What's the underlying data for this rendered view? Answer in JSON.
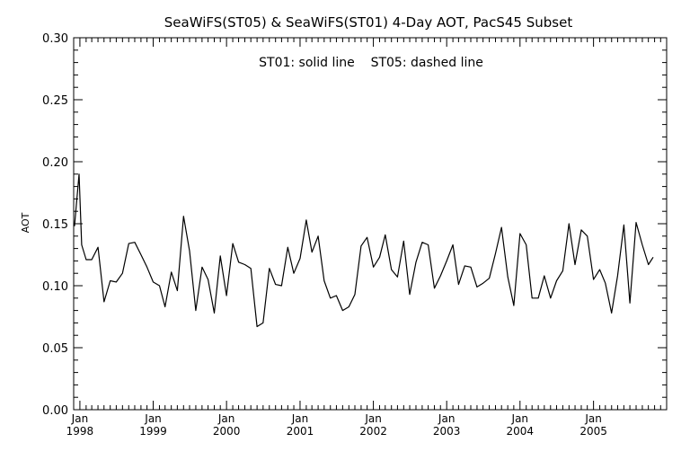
{
  "chart_data": {
    "type": "line",
    "title": "SeaWiFS(ST05) & SeaWiFS(ST01) 4-Day AOT, PacS45 Subset",
    "annotation": "ST01: solid line    ST05: dashed line",
    "xlabel": "",
    "ylabel": "AOT",
    "xlim": [
      "1997-12-01",
      "2005-12-31"
    ],
    "ylim": [
      0,
      0.3
    ],
    "y_ticks": [
      "0.00",
      "0.05",
      "0.10",
      "0.15",
      "0.20",
      "0.25",
      "0.30"
    ],
    "x_ticks": [
      {
        "month": "Jan",
        "year": "1998",
        "date": "1998-01-01"
      },
      {
        "month": "Jan",
        "year": "1999",
        "date": "1999-01-01"
      },
      {
        "month": "Jan",
        "year": "2000",
        "date": "2000-01-01"
      },
      {
        "month": "Jan",
        "year": "2001",
        "date": "2001-01-01"
      },
      {
        "month": "Jan",
        "year": "2002",
        "date": "2002-01-01"
      },
      {
        "month": "Jan",
        "year": "2003",
        "date": "2003-01-01"
      },
      {
        "month": "Jan",
        "year": "2004",
        "date": "2004-01-01"
      },
      {
        "month": "Jan",
        "year": "2005",
        "date": "2005-01-01"
      }
    ],
    "grid": false,
    "series": [
      {
        "name": "ST01",
        "style": "solid",
        "color": "#000000",
        "points": [
          [
            "1997-12-05",
            0.148
          ],
          [
            "1997-12-28",
            0.19
          ],
          [
            "1998-01-10",
            0.133
          ],
          [
            "1998-02-01",
            0.121
          ],
          [
            "1998-03-01",
            0.121
          ],
          [
            "1998-04-01",
            0.131
          ],
          [
            "1998-05-01",
            0.087
          ],
          [
            "1998-06-01",
            0.104
          ],
          [
            "1998-07-01",
            0.103
          ],
          [
            "1998-08-01",
            0.11
          ],
          [
            "1998-09-01",
            0.134
          ],
          [
            "1998-10-01",
            0.135
          ],
          [
            "1998-11-01",
            0.125
          ],
          [
            "1998-12-01",
            0.115
          ],
          [
            "1999-01-01",
            0.103
          ],
          [
            "1999-02-01",
            0.1
          ],
          [
            "1999-03-01",
            0.083
          ],
          [
            "1999-04-01",
            0.111
          ],
          [
            "1999-05-01",
            0.096
          ],
          [
            "1999-06-01",
            0.156
          ],
          [
            "1999-07-01",
            0.128
          ],
          [
            "1999-08-01",
            0.08
          ],
          [
            "1999-09-01",
            0.115
          ],
          [
            "1999-10-01",
            0.105
          ],
          [
            "1999-11-01",
            0.078
          ],
          [
            "1999-12-01",
            0.124
          ],
          [
            "2000-01-01",
            0.092
          ],
          [
            "2000-02-01",
            0.134
          ],
          [
            "2000-03-01",
            0.119
          ],
          [
            "2000-04-01",
            0.117
          ],
          [
            "2000-05-01",
            0.114
          ],
          [
            "2000-06-01",
            0.067
          ],
          [
            "2000-07-01",
            0.07
          ],
          [
            "2000-08-01",
            0.114
          ],
          [
            "2000-09-01",
            0.101
          ],
          [
            "2000-10-01",
            0.1
          ],
          [
            "2000-11-01",
            0.131
          ],
          [
            "2000-12-01",
            0.11
          ],
          [
            "2001-01-01",
            0.122
          ],
          [
            "2001-02-01",
            0.153
          ],
          [
            "2001-03-01",
            0.127
          ],
          [
            "2001-04-01",
            0.14
          ],
          [
            "2001-05-01",
            0.104
          ],
          [
            "2001-06-01",
            0.09
          ],
          [
            "2001-07-01",
            0.092
          ],
          [
            "2001-08-01",
            0.08
          ],
          [
            "2001-09-01",
            0.083
          ],
          [
            "2001-10-01",
            0.093
          ],
          [
            "2001-11-01",
            0.132
          ],
          [
            "2001-12-01",
            0.139
          ],
          [
            "2002-01-01",
            0.115
          ],
          [
            "2002-02-01",
            0.123
          ],
          [
            "2002-03-01",
            0.141
          ],
          [
            "2002-04-01",
            0.113
          ],
          [
            "2002-05-01",
            0.107
          ],
          [
            "2002-06-01",
            0.136
          ],
          [
            "2002-07-01",
            0.093
          ],
          [
            "2002-08-01",
            0.119
          ],
          [
            "2002-09-01",
            0.135
          ],
          [
            "2002-10-01",
            0.133
          ],
          [
            "2002-11-01",
            0.098
          ],
          [
            "2002-12-01",
            0.108
          ],
          [
            "2003-01-01",
            0.12
          ],
          [
            "2003-02-01",
            0.133
          ],
          [
            "2003-03-01",
            0.101
          ],
          [
            "2003-04-01",
            0.116
          ],
          [
            "2003-05-01",
            0.115
          ],
          [
            "2003-06-01",
            0.099
          ],
          [
            "2003-07-01",
            0.102
          ],
          [
            "2003-08-01",
            0.106
          ],
          [
            "2003-09-01",
            0.126
          ],
          [
            "2003-10-01",
            0.147
          ],
          [
            "2003-11-01",
            0.107
          ],
          [
            "2003-12-01",
            0.084
          ],
          [
            "2004-01-01",
            0.142
          ],
          [
            "2004-02-01",
            0.133
          ],
          [
            "2004-03-01",
            0.09
          ],
          [
            "2004-04-01",
            0.09
          ],
          [
            "2004-05-01",
            0.108
          ],
          [
            "2004-06-01",
            0.09
          ],
          [
            "2004-07-01",
            0.104
          ],
          [
            "2004-08-01",
            0.112
          ],
          [
            "2004-09-01",
            0.15
          ],
          [
            "2004-10-01",
            0.117
          ],
          [
            "2004-11-01",
            0.145
          ],
          [
            "2004-12-01",
            0.14
          ],
          [
            "2005-01-01",
            0.105
          ],
          [
            "2005-02-01",
            0.113
          ],
          [
            "2005-03-01",
            0.102
          ],
          [
            "2005-04-01",
            0.078
          ],
          [
            "2005-05-01",
            0.108
          ],
          [
            "2005-06-01",
            0.149
          ],
          [
            "2005-07-01",
            0.086
          ],
          [
            "2005-08-01",
            0.151
          ],
          [
            "2005-09-01",
            0.133
          ],
          [
            "2005-10-01",
            0.117
          ],
          [
            "2005-10-25",
            0.123
          ]
        ]
      }
    ]
  }
}
